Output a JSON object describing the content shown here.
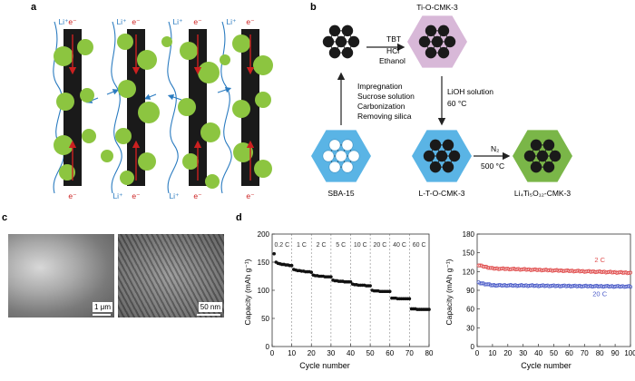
{
  "panels": {
    "a": "a",
    "b": "b",
    "c": "c",
    "d": "d"
  },
  "panel_a": {
    "electron_label": "e⁻",
    "lithium_label": "Li⁺",
    "colors": {
      "rod": "#1a1a1a",
      "particle": "#8cc540",
      "arrow": "#cc2020",
      "ion_path": "#2a7bc0"
    }
  },
  "panel_b": {
    "nodes": {
      "precursor": "",
      "ti_o_cmk3": "Ti-O-CMK-3",
      "sba15": "SBA-15",
      "l_t_o_cmk3": "L-T-O-CMK-3",
      "lto_cmk3": "Li₄Ti₅O₁₂-CMK-3"
    },
    "steps": {
      "tbt": "TBT",
      "hcl": "HCl",
      "ethanol": "Ethanol",
      "impregnation": "Impregnation",
      "sucrose": "Sucrose solution",
      "carbonization": "Carbonization",
      "removing_silica": "Removing silica",
      "lioh": "LiOH solution",
      "lioh_temp": "60 °C",
      "n2": "N₂",
      "n2_temp": "500 °C"
    },
    "colors": {
      "ti_hex": "#d8b8d8",
      "sba_hex": "#5ab4e5",
      "lto_hex": "#7ab648"
    }
  },
  "panel_c": {
    "sem_scale": "1 μm",
    "tem_scale": "50 nm"
  },
  "chart_data": [
    {
      "type": "scatter",
      "xlabel": "Cycle number",
      "ylabel": "Capacity (mAh g⁻¹)",
      "xlim": [
        0,
        80
      ],
      "ylim": [
        0,
        200
      ],
      "xticks": [
        0,
        10,
        20,
        30,
        40,
        50,
        60,
        70,
        80
      ],
      "yticks": [
        0,
        50,
        100,
        150,
        200
      ],
      "grid": false,
      "rate_labels": [
        "0.2 C",
        "1 C",
        "2 C",
        "5 C",
        "10 C",
        "20 C",
        "40 C",
        "60 C"
      ],
      "segment_boundaries": [
        10,
        20,
        30,
        40,
        50,
        60,
        70
      ],
      "segments": [
        {
          "rate": "0.2 C",
          "x_start": 1,
          "x_end": 10,
          "values": [
            165,
            150,
            148,
            147,
            146,
            146,
            145,
            145,
            144,
            144
          ]
        },
        {
          "rate": "1 C",
          "x_start": 11,
          "x_end": 20,
          "values": [
            137,
            136,
            135,
            135,
            134,
            134,
            133,
            133,
            133,
            132
          ]
        },
        {
          "rate": "2 C",
          "x_start": 21,
          "x_end": 30,
          "values": [
            127,
            126,
            126,
            125,
            125,
            125,
            124,
            124,
            124,
            124
          ]
        },
        {
          "rate": "5 C",
          "x_start": 31,
          "x_end": 40,
          "values": [
            118,
            117,
            117,
            116,
            116,
            116,
            115,
            115,
            115,
            115
          ]
        },
        {
          "rate": "10 C",
          "x_start": 41,
          "x_end": 50,
          "values": [
            111,
            110,
            110,
            109,
            109,
            109,
            109,
            108,
            108,
            108
          ]
        },
        {
          "rate": "20 C",
          "x_start": 51,
          "x_end": 60,
          "values": [
            100,
            99,
            99,
            99,
            98,
            98,
            98,
            98,
            98,
            98
          ]
        },
        {
          "rate": "40 C",
          "x_start": 61,
          "x_end": 70,
          "values": [
            86,
            86,
            86,
            85,
            85,
            85,
            85,
            85,
            85,
            85
          ]
        },
        {
          "rate": "60 C",
          "x_start": 71,
          "x_end": 80,
          "values": [
            67,
            67,
            67,
            66,
            66,
            66,
            66,
            66,
            66,
            66
          ]
        }
      ],
      "marker_color": "#111111"
    },
    {
      "type": "scatter",
      "xlabel": "Cycle number",
      "ylabel": "Capacity (mAh g⁻¹)",
      "xlim": [
        0,
        100
      ],
      "ylim": [
        0,
        180
      ],
      "xticks": [
        0,
        10,
        20,
        30,
        40,
        50,
        60,
        70,
        80,
        90,
        100
      ],
      "yticks": [
        0,
        30,
        60,
        90,
        120,
        150,
        180
      ],
      "grid": false,
      "series": [
        {
          "name": "2 C",
          "color": "#e05050",
          "start": 130,
          "plateau": 125,
          "end": 118
        },
        {
          "name": "20 C",
          "color": "#4a5bc8",
          "start": 102,
          "plateau": 98,
          "end": 96
        }
      ]
    }
  ]
}
